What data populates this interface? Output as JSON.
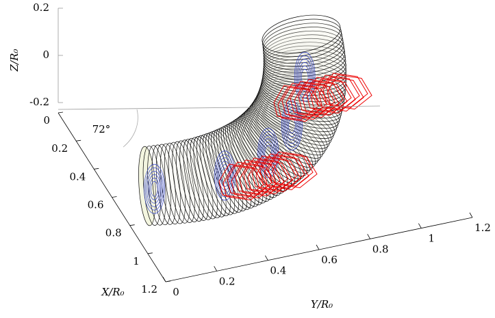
{
  "chart_data": {
    "type": "surface3d",
    "xlabel": "X/R₀",
    "ylabel": "Y/R₀",
    "zlabel": "Z/R₀",
    "annotation": "72°",
    "xlim": [
      0,
      1.2
    ],
    "xticks": [
      0,
      0.2,
      0.4,
      0.6,
      0.8,
      1,
      1.2
    ],
    "ylim": [
      0,
      1.2
    ],
    "yticks": [
      0,
      0.2,
      0.4,
      0.6,
      0.8,
      1,
      1.2
    ],
    "zlim": [
      -0.2,
      0.2
    ],
    "zticks": [
      -0.2,
      0,
      0.2
    ]
  }
}
